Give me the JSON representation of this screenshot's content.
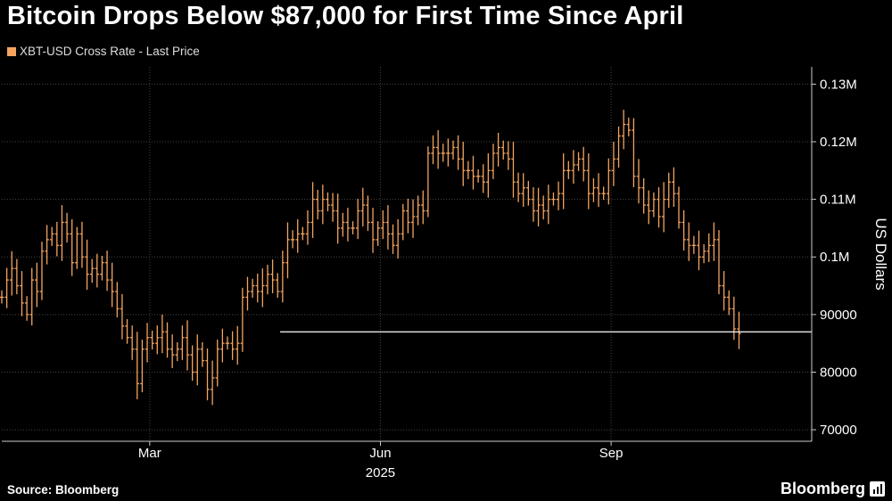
{
  "title": "Bitcoin Drops Below $87,000 for First Time Since April",
  "source": "Source: Bloomberg",
  "brand": "Bloomberg",
  "colors": {
    "series": "#f4a460",
    "background": "#000000",
    "grid": "#444444",
    "reference_line": "#ffffff"
  },
  "chart_data": {
    "type": "bar",
    "style": "ohlc-range-bars",
    "legend_position": "top-left",
    "grid": true,
    "series": [
      {
        "name": "XBT-USD Cross Rate - Last Price"
      }
    ],
    "ylabel": "US Dollars",
    "ylim": [
      68000,
      133000
    ],
    "yticks": [
      {
        "value": 70000,
        "label": "70000"
      },
      {
        "value": 80000,
        "label": "80000"
      },
      {
        "value": 90000,
        "label": "90000"
      },
      {
        "value": 100000,
        "label": "0.1M"
      },
      {
        "value": 110000,
        "label": "0.11M"
      },
      {
        "value": 120000,
        "label": "0.12M"
      },
      {
        "value": 130000,
        "label": "0.13M"
      }
    ],
    "xlim": [
      "2025-01-01",
      "2025-11-20"
    ],
    "xticks": [
      {
        "date": "2025-03-01",
        "label": "Mar"
      },
      {
        "date": "2025-06-01",
        "label": "Jun"
      },
      {
        "date": "2025-09-01",
        "label": "Sep"
      }
    ],
    "year_label": "2025",
    "reference_line": {
      "value": 87000,
      "from": "2025-04-22",
      "to": "2025-11-20"
    },
    "x_step_days": 2,
    "closes": [
      93000,
      96000,
      98000,
      95000,
      92000,
      90000,
      96000,
      94000,
      101000,
      103000,
      104000,
      102000,
      106000,
      104000,
      99000,
      104000,
      100000,
      97000,
      98000,
      97000,
      99000,
      96000,
      94000,
      91000,
      88000,
      86000,
      84000,
      78000,
      84000,
      86000,
      85000,
      86000,
      87000,
      84000,
      83000,
      84000,
      86000,
      83000,
      80000,
      84000,
      82000,
      77000,
      79000,
      84000,
      85000,
      85000,
      84000,
      85000,
      93000,
      94000,
      95000,
      94000,
      95000,
      97000,
      96000,
      94000,
      99000,
      103000,
      103000,
      104000,
      104000,
      106000,
      110000,
      108000,
      110000,
      109000,
      108000,
      105000,
      106000,
      105000,
      105000,
      108000,
      109000,
      106000,
      103000,
      105000,
      106000,
      104000,
      102000,
      104000,
      108000,
      106000,
      107000,
      109000,
      108000,
      118000,
      119000,
      118000,
      118000,
      118000,
      119000,
      117000,
      115000,
      115000,
      114000,
      114000,
      113000,
      115000,
      118000,
      119000,
      118000,
      117000,
      113000,
      111000,
      112000,
      110000,
      108000,
      109000,
      108000,
      110000,
      110000,
      111000,
      115000,
      115000,
      116000,
      117000,
      115000,
      111000,
      112000,
      111000,
      111000,
      115000,
      117000,
      121000,
      123000,
      122000,
      114000,
      112000,
      109000,
      108000,
      110000,
      107000,
      110000,
      113000,
      111000,
      106000,
      103000,
      102000,
      102000,
      100000,
      101000,
      102000,
      103000,
      95000,
      93000,
      91000,
      87500,
      86700
    ]
  }
}
